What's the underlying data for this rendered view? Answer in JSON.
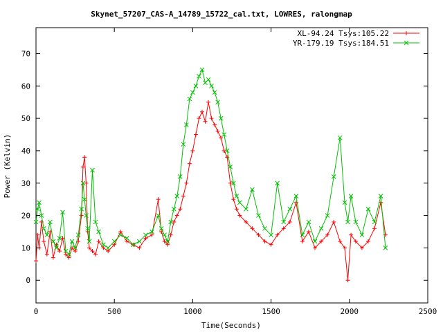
{
  "chart_data": {
    "type": "line",
    "title": "Skynet_57207_CAS-A_14789_15722_cal.txt, LOWRES, ralongmap",
    "xlabel": "Time(Seconds)",
    "ylabel": "Power (Kelvin)",
    "xlim": [
      0,
      2500
    ],
    "ylim": [
      -7,
      78
    ],
    "xticks": [
      0,
      500,
      1000,
      1500,
      2000,
      2500
    ],
    "yticks": [
      0,
      10,
      20,
      30,
      40,
      50,
      60,
      70
    ],
    "legend_position": "top-right",
    "grid": false,
    "series": [
      {
        "name": "XL-94.24 Tsys:105.22",
        "color": "#ff0000",
        "marker": "plus",
        "x": [
          0,
          10,
          20,
          35,
          50,
          70,
          90,
          110,
          130,
          150,
          170,
          190,
          210,
          230,
          250,
          270,
          290,
          300,
          310,
          320,
          330,
          340,
          360,
          380,
          400,
          430,
          460,
          500,
          540,
          580,
          620,
          660,
          700,
          740,
          780,
          800,
          820,
          840,
          860,
          880,
          900,
          920,
          940,
          960,
          980,
          1000,
          1020,
          1040,
          1060,
          1080,
          1100,
          1120,
          1140,
          1160,
          1180,
          1200,
          1220,
          1240,
          1260,
          1280,
          1300,
          1340,
          1380,
          1420,
          1460,
          1500,
          1540,
          1580,
          1620,
          1660,
          1700,
          1740,
          1780,
          1820,
          1860,
          1900,
          1940,
          1970,
          1990,
          2010,
          2040,
          2080,
          2120,
          2160,
          2200,
          2230
        ],
        "y": [
          6,
          14,
          10,
          18,
          12,
          8,
          15,
          7,
          11,
          9,
          13,
          8,
          7,
          10,
          9,
          12,
          20,
          35,
          38,
          30,
          15,
          10,
          9,
          8,
          12,
          10,
          9,
          11,
          15,
          12,
          11,
          10,
          13,
          14,
          25,
          15,
          12,
          11,
          14,
          18,
          20,
          22,
          26,
          30,
          36,
          40,
          45,
          50,
          52,
          49,
          55,
          50,
          48,
          46,
          44,
          40,
          38,
          30,
          25,
          22,
          20,
          18,
          16,
          14,
          12,
          11,
          14,
          16,
          18,
          24,
          12,
          15,
          10,
          12,
          14,
          18,
          12,
          10,
          0,
          14,
          12,
          10,
          12,
          16,
          24,
          14
        ]
      },
      {
        "name": "YR-179.19 Tsys:184.51",
        "color": "#00c000",
        "marker": "cross",
        "x": [
          0,
          10,
          20,
          35,
          50,
          70,
          90,
          110,
          130,
          150,
          170,
          190,
          210,
          230,
          250,
          270,
          290,
          300,
          310,
          320,
          330,
          340,
          360,
          380,
          400,
          430,
          460,
          500,
          540,
          580,
          620,
          660,
          700,
          740,
          780,
          800,
          820,
          840,
          860,
          880,
          900,
          920,
          940,
          960,
          980,
          1000,
          1020,
          1040,
          1060,
          1080,
          1100,
          1120,
          1140,
          1160,
          1180,
          1200,
          1220,
          1240,
          1260,
          1280,
          1300,
          1340,
          1380,
          1420,
          1460,
          1500,
          1540,
          1580,
          1620,
          1660,
          1700,
          1740,
          1780,
          1820,
          1860,
          1900,
          1940,
          1970,
          1990,
          2010,
          2040,
          2080,
          2120,
          2160,
          2200,
          2230
        ],
        "y": [
          18,
          22,
          24,
          20,
          16,
          14,
          18,
          12,
          10,
          13,
          21,
          9,
          8,
          12,
          10,
          14,
          22,
          30,
          25,
          20,
          16,
          12,
          34,
          18,
          15,
          11,
          10,
          12,
          14,
          13,
          11,
          12,
          14,
          15,
          20,
          16,
          14,
          12,
          18,
          22,
          26,
          32,
          42,
          48,
          56,
          58,
          60,
          63,
          65,
          61,
          62,
          60,
          58,
          55,
          50,
          45,
          40,
          35,
          30,
          26,
          24,
          22,
          28,
          20,
          16,
          14,
          30,
          18,
          22,
          26,
          14,
          18,
          12,
          16,
          20,
          32,
          44,
          24,
          18,
          26,
          18,
          14,
          22,
          18,
          26,
          10
        ]
      }
    ]
  }
}
